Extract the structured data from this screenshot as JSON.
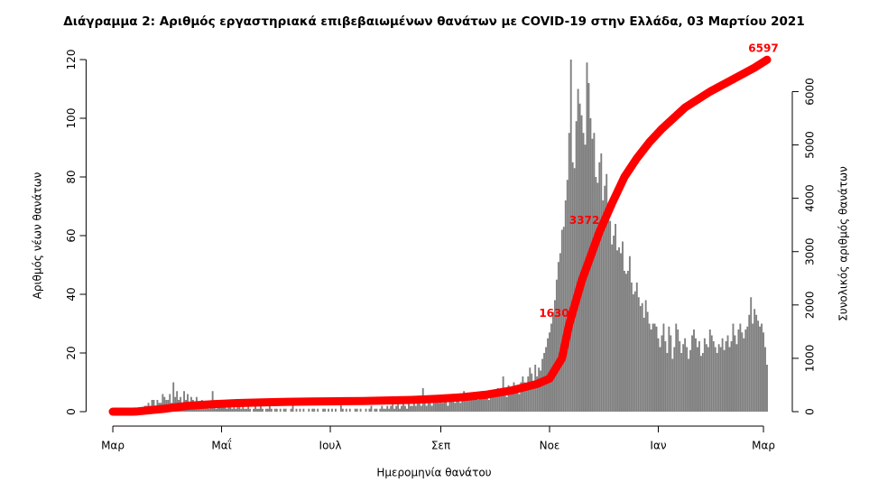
{
  "chart_data": {
    "type": "bar-line",
    "title": "Διάγραμμα 2: Αριθμός εργαστηριακά επιβεβαιωμένων θανάτων με COVID-19 στην Ελλάδα, 03 Μαρτίου 2021",
    "x_label": "Ημερομηνία θανάτου",
    "y_label": "Αριθμός νέων θανάτων",
    "y2_label": "Συνολικός αριθμός θανάτων",
    "xlim": [
      -15,
      375
    ],
    "xticks": [
      {
        "value": 0,
        "label": "Μαρ"
      },
      {
        "value": 61,
        "label": "Μαΐ"
      },
      {
        "value": 122,
        "label": "Ιουλ"
      },
      {
        "value": 184,
        "label": "Σεπ"
      },
      {
        "value": 245,
        "label": "Νοε"
      },
      {
        "value": 306,
        "label": "Ιαν"
      },
      {
        "value": 365,
        "label": "Μαρ"
      }
    ],
    "ylim": [
      0,
      120
    ],
    "yticks": [
      0,
      20,
      40,
      60,
      80,
      100,
      120
    ],
    "y2lim": [
      0,
      6600
    ],
    "y2ticks": [
      0,
      1000,
      2000,
      3000,
      4000,
      5000,
      6000
    ],
    "bars": {
      "color": "#7f7f7f",
      "x": [
        0,
        1,
        2,
        3,
        4,
        5,
        6,
        7,
        8,
        9,
        10,
        11,
        12,
        13,
        14,
        15,
        16,
        17,
        18,
        19,
        20,
        21,
        22,
        23,
        24,
        25,
        26,
        27,
        28,
        29,
        30,
        31,
        32,
        33,
        34,
        35,
        36,
        37,
        38,
        39,
        40,
        41,
        42,
        43,
        44,
        45,
        46,
        47,
        48,
        49,
        50,
        51,
        52,
        53,
        54,
        55,
        56,
        57,
        58,
        59,
        60,
        61,
        62,
        63,
        64,
        65,
        66,
        67,
        68,
        69,
        70,
        71,
        72,
        73,
        74,
        75,
        76,
        77,
        78,
        79,
        80,
        81,
        82,
        83,
        84,
        85,
        86,
        87,
        88,
        89,
        90,
        91,
        92,
        93,
        94,
        95,
        96,
        97,
        98,
        99,
        100,
        101,
        102,
        103,
        104,
        105,
        106,
        107,
        108,
        109,
        110,
        111,
        112,
        113,
        114,
        115,
        116,
        117,
        118,
        119,
        120,
        121,
        122,
        123,
        124,
        125,
        126,
        127,
        128,
        129,
        130,
        131,
        132,
        133,
        134,
        135,
        136,
        137,
        138,
        139,
        140,
        141,
        142,
        143,
        144,
        145,
        146,
        147,
        148,
        149,
        150,
        151,
        152,
        153,
        154,
        155,
        156,
        157,
        158,
        159,
        160,
        161,
        162,
        163,
        164,
        165,
        166,
        167,
        168,
        169,
        170,
        171,
        172,
        173,
        174,
        175,
        176,
        177,
        178,
        179,
        180,
        181,
        182,
        183,
        184,
        185,
        186,
        187,
        188,
        189,
        190,
        191,
        192,
        193,
        194,
        195,
        196,
        197,
        198,
        199,
        200,
        201,
        202,
        203,
        204,
        205,
        206,
        207,
        208,
        209,
        210,
        211,
        212,
        213,
        214,
        215,
        216,
        217,
        218,
        219,
        220,
        221,
        222,
        223,
        224,
        225,
        226,
        227,
        228,
        229,
        230,
        231,
        232,
        233,
        234,
        235,
        236,
        237,
        238,
        239,
        240,
        241,
        242,
        243,
        244,
        245,
        246,
        247,
        248,
        249,
        250,
        251,
        252,
        253,
        254,
        255,
        256,
        257,
        258,
        259,
        260,
        261,
        262,
        263,
        264,
        265,
        266,
        267,
        268,
        269,
        270,
        271,
        272,
        273,
        274,
        275,
        276,
        277,
        278,
        279,
        280,
        281,
        282,
        283,
        284,
        285,
        286,
        287,
        288,
        289,
        290,
        291,
        292,
        293,
        294,
        295,
        296,
        297,
        298,
        299,
        300,
        301,
        302,
        303,
        304,
        305,
        306,
        307,
        308,
        309,
        310,
        311,
        312,
        313,
        314,
        315,
        316,
        317,
        318,
        319,
        320,
        321,
        322,
        323,
        324,
        325,
        326,
        327,
        328,
        329,
        330,
        331,
        332,
        333,
        334,
        335,
        336,
        337,
        338,
        339,
        340,
        341,
        342,
        343,
        344,
        345,
        346,
        347,
        348,
        349,
        350,
        351,
        352,
        353,
        354,
        355,
        356,
        357,
        358,
        359,
        360,
        361,
        362,
        363,
        364,
        365,
        366,
        367
      ],
      "values": [
        0,
        0,
        0,
        0,
        0,
        0,
        0,
        0,
        0,
        0,
        0,
        1,
        0,
        1,
        1,
        0,
        1,
        1,
        2,
        2,
        3,
        2,
        4,
        4,
        2,
        4,
        3,
        3,
        6,
        5,
        4,
        4,
        6,
        3,
        10,
        5,
        7,
        4,
        5,
        3,
        7,
        4,
        6,
        2,
        5,
        4,
        3,
        5,
        3,
        2,
        4,
        3,
        2,
        3,
        1,
        2,
        7,
        2,
        1,
        2,
        2,
        2,
        2,
        3,
        1,
        2,
        4,
        1,
        2,
        1,
        3,
        2,
        1,
        2,
        1,
        1,
        3,
        1,
        0,
        1,
        2,
        1,
        1,
        2,
        1,
        0,
        1,
        1,
        2,
        1,
        0,
        1,
        1,
        0,
        1,
        0,
        1,
        1,
        0,
        0,
        1,
        2,
        0,
        1,
        0,
        1,
        0,
        1,
        0,
        0,
        1,
        0,
        1,
        1,
        0,
        1,
        0,
        0,
        1,
        1,
        0,
        1,
        0,
        1,
        0,
        1,
        0,
        0,
        3,
        1,
        0,
        1,
        0,
        1,
        0,
        0,
        1,
        1,
        0,
        1,
        0,
        0,
        1,
        0,
        1,
        2,
        0,
        1,
        1,
        0,
        1,
        2,
        1,
        1,
        2,
        1,
        2,
        3,
        1,
        2,
        4,
        1,
        2,
        3,
        2,
        1,
        3,
        2,
        2,
        3,
        2,
        3,
        4,
        2,
        8,
        3,
        2,
        4,
        3,
        2,
        5,
        3,
        4,
        3,
        4,
        3,
        5,
        4,
        2,
        4,
        5,
        6,
        3,
        4,
        5,
        3,
        4,
        7,
        5,
        6,
        5,
        4,
        6,
        5,
        5,
        4,
        6,
        7,
        6,
        5,
        6,
        4,
        5,
        6,
        6,
        5,
        8,
        6,
        7,
        12,
        6,
        5,
        9,
        7,
        8,
        10,
        7,
        9,
        6,
        10,
        12,
        10,
        8,
        12,
        15,
        13,
        10,
        16,
        12,
        15,
        14,
        18,
        20,
        22,
        25,
        27,
        30,
        34,
        38,
        45,
        51,
        54,
        62,
        63,
        72,
        79,
        95,
        120,
        85,
        83,
        99,
        110,
        105,
        101,
        95,
        91,
        119,
        112,
        100,
        93,
        95,
        80,
        78,
        85,
        88,
        72,
        77,
        81,
        68,
        65,
        57,
        60,
        64,
        55,
        56,
        54,
        58,
        48,
        47,
        48,
        53,
        44,
        40,
        41,
        44,
        39,
        36,
        37,
        32,
        38,
        34,
        30,
        28,
        30,
        30,
        29,
        25,
        22,
        26,
        30,
        24,
        20,
        29,
        26,
        18,
        22,
        30,
        28,
        24,
        20,
        23,
        25,
        22,
        18,
        21,
        26,
        28,
        25,
        22,
        24,
        19,
        20,
        25,
        23,
        22,
        28,
        26,
        24,
        22,
        20,
        23,
        22,
        25,
        21,
        24,
        26,
        22,
        24,
        30,
        26,
        23,
        28,
        30,
        27,
        25,
        28,
        29,
        33,
        39,
        30,
        35,
        33,
        31,
        29,
        30,
        27,
        22,
        16
      ]
    },
    "line": {
      "color": "#ff0000",
      "axis": "y2",
      "x": [
        0,
        11,
        14,
        28,
        42,
        56,
        70,
        84,
        98,
        112,
        126,
        140,
        154,
        168,
        182,
        196,
        210,
        224,
        238,
        245,
        252,
        256,
        263,
        273,
        280,
        287,
        294,
        301,
        308,
        321,
        335,
        349,
        360,
        367
      ],
      "values": [
        0,
        0,
        5,
        50,
        110,
        140,
        160,
        175,
        185,
        190,
        195,
        200,
        210,
        220,
        240,
        270,
        320,
        400,
        520,
        620,
        1000,
        1630,
        2450,
        3372,
        3900,
        4400,
        4750,
        5050,
        5300,
        5700,
        6000,
        6250,
        6450,
        6597
      ],
      "value_labels": [
        null,
        null,
        null,
        null,
        null,
        null,
        null,
        null,
        null,
        null,
        null,
        null,
        null,
        null,
        null,
        null,
        null,
        null,
        null,
        null,
        null,
        "1630",
        null,
        "3372",
        null,
        null,
        null,
        null,
        null,
        null,
        null,
        null,
        null,
        "6597"
      ]
    }
  }
}
